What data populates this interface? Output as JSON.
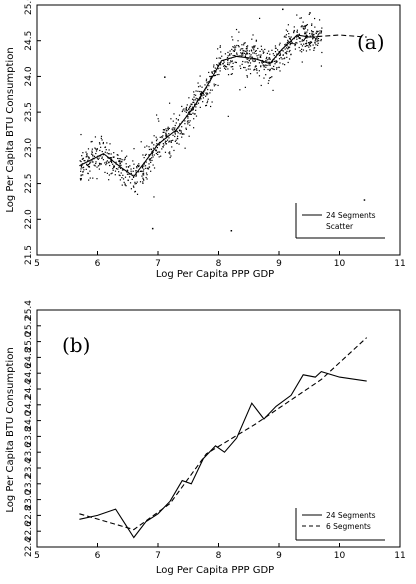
{
  "chart_data": [
    {
      "type": "scatter",
      "panel_label": "(a)",
      "xlabel": "Log Per Capita PPP GDP",
      "ylabel": "Log Per Capita BTU Consumption",
      "xlim": [
        5,
        11
      ],
      "ylim": [
        21.5,
        25.0
      ],
      "x_ticks": [
        "5",
        "6",
        "7",
        "8",
        "9",
        "10",
        "11"
      ],
      "y_ticks": [
        "21.5",
        "22.0",
        "22.5",
        "23.0",
        "23.5",
        "24.0",
        "24.5",
        "25.0"
      ],
      "legend": {
        "position": "bottom-right",
        "entries": [
          "24 Segments",
          "Scatter"
        ]
      },
      "series": [
        {
          "name": "24 Segments",
          "style": "solid",
          "x": [
            5.7,
            6.1,
            6.4,
            6.6,
            6.8,
            7.0,
            7.3,
            7.6,
            7.85,
            8.05,
            8.3,
            8.6,
            8.85,
            9.05,
            9.3,
            9.5
          ],
          "y": [
            22.75,
            22.92,
            22.72,
            22.6,
            22.82,
            23.05,
            23.25,
            23.58,
            23.92,
            24.22,
            24.28,
            24.25,
            24.18,
            24.38,
            24.58,
            24.55
          ]
        },
        {
          "name": "",
          "style": "dashed",
          "x": [
            9.5,
            10.0,
            10.45
          ],
          "y": [
            24.55,
            24.58,
            24.55
          ]
        }
      ],
      "scatter": {
        "name": "Scatter",
        "trend": [
          [
            5.7,
            22.75
          ],
          [
            6.1,
            22.92
          ],
          [
            6.4,
            22.72
          ],
          [
            6.6,
            22.6
          ],
          [
            6.8,
            22.82
          ],
          [
            7.0,
            23.05
          ],
          [
            7.3,
            23.25
          ],
          [
            7.6,
            23.58
          ],
          [
            7.85,
            23.92
          ],
          [
            8.05,
            24.22
          ],
          [
            8.3,
            24.28
          ],
          [
            8.6,
            24.25
          ],
          [
            8.85,
            24.18
          ],
          [
            9.05,
            24.38
          ],
          [
            9.3,
            24.58
          ],
          [
            9.5,
            24.55
          ],
          [
            9.7,
            24.6
          ]
        ],
        "spread": 0.16,
        "outliers": [
          [
            6.9,
            21.88
          ],
          [
            10.4,
            22.28
          ],
          [
            8.2,
            21.85
          ],
          [
            7.1,
            24.0
          ],
          [
            9.05,
            24.95
          ],
          [
            9.5,
            24.9
          ]
        ]
      }
    },
    {
      "type": "line",
      "panel_label": "(b)",
      "xlabel": "Log Per Capita PPP GDP",
      "ylabel": "Log Per Capita BTU Consumption",
      "xlim": [
        5,
        11
      ],
      "ylim": [
        22.4,
        25.4
      ],
      "x_ticks": [
        "5",
        "6",
        "7",
        "8",
        "9",
        "10",
        "11"
      ],
      "y_ticks": [
        "22.4",
        "22.6",
        "22.8",
        "23.0",
        "23.2",
        "23.4",
        "23.6",
        "23.8",
        "24.0",
        "24.2",
        "24.4",
        "24.6",
        "24.8",
        "25.0",
        "25.2",
        "25.4"
      ],
      "legend": {
        "position": "bottom-right",
        "entries": [
          "24 Segments",
          "6 Segments"
        ]
      },
      "series": [
        {
          "name": "24 Segments",
          "style": "solid",
          "x": [
            5.7,
            6.0,
            6.3,
            6.6,
            6.8,
            7.0,
            7.2,
            7.4,
            7.55,
            7.75,
            7.95,
            8.1,
            8.3,
            8.55,
            8.75,
            8.95,
            9.2,
            9.4,
            9.6,
            9.7,
            10.0,
            10.45
          ],
          "y": [
            22.75,
            22.8,
            22.88,
            22.52,
            22.72,
            22.82,
            22.98,
            23.24,
            23.2,
            23.52,
            23.68,
            23.6,
            23.78,
            24.22,
            24.02,
            24.18,
            24.32,
            24.58,
            24.55,
            24.62,
            24.55,
            24.5
          ]
        },
        {
          "name": "6 Segments",
          "style": "dashed",
          "x": [
            5.7,
            6.6,
            7.2,
            7.8,
            8.6,
            9.7,
            10.45
          ],
          "y": [
            22.82,
            22.62,
            22.95,
            23.58,
            23.95,
            24.52,
            25.05
          ]
        }
      ]
    }
  ]
}
